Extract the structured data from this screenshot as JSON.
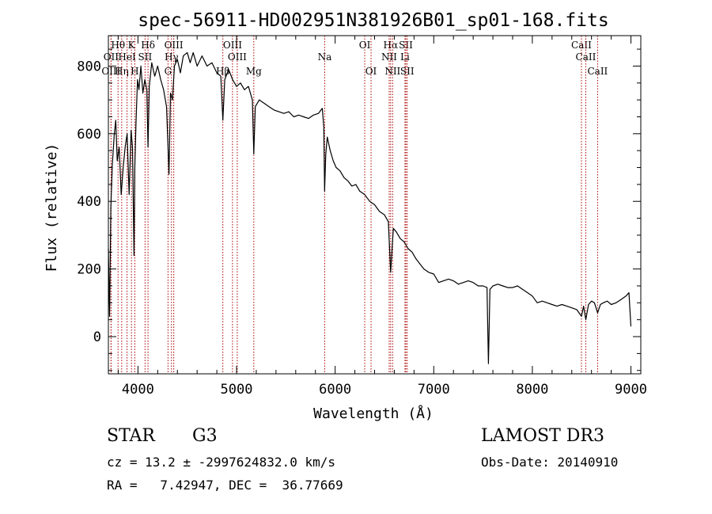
{
  "chart_data": {
    "type": "line",
    "title": "spec-56911-HD002951N381926B01_sp01-168.fits",
    "xlabel": "Wavelength (Å)",
    "ylabel": "Flux (relative)",
    "xlim": [
      3700,
      9100
    ],
    "ylim": [
      -110,
      890
    ],
    "x_ticks": [
      4000,
      5000,
      6000,
      7000,
      8000,
      9000
    ],
    "y_ticks": [
      0,
      200,
      400,
      600,
      800
    ],
    "grid": false,
    "series": [
      {
        "name": "flux",
        "points": [
          [
            3700,
            260
          ],
          [
            3712,
            60
          ],
          [
            3725,
            380
          ],
          [
            3740,
            510
          ],
          [
            3760,
            600
          ],
          [
            3775,
            640
          ],
          [
            3790,
            520
          ],
          [
            3810,
            560
          ],
          [
            3830,
            420
          ],
          [
            3850,
            500
          ],
          [
            3870,
            560
          ],
          [
            3890,
            600
          ],
          [
            3910,
            420
          ],
          [
            3930,
            610
          ],
          [
            3945,
            560
          ],
          [
            3960,
            240
          ],
          [
            3968,
            500
          ],
          [
            3980,
            630
          ],
          [
            3995,
            760
          ],
          [
            4010,
            730
          ],
          [
            4030,
            800
          ],
          [
            4050,
            720
          ],
          [
            4070,
            760
          ],
          [
            4090,
            730
          ],
          [
            4102,
            560
          ],
          [
            4115,
            740
          ],
          [
            4140,
            810
          ],
          [
            4170,
            770
          ],
          [
            4200,
            800
          ],
          [
            4230,
            760
          ],
          [
            4260,
            730
          ],
          [
            4290,
            680
          ],
          [
            4305,
            560
          ],
          [
            4315,
            480
          ],
          [
            4330,
            720
          ],
          [
            4350,
            700
          ],
          [
            4370,
            800
          ],
          [
            4400,
            820
          ],
          [
            4430,
            780
          ],
          [
            4460,
            830
          ],
          [
            4500,
            840
          ],
          [
            4530,
            810
          ],
          [
            4560,
            840
          ],
          [
            4600,
            800
          ],
          [
            4650,
            830
          ],
          [
            4700,
            800
          ],
          [
            4750,
            810
          ],
          [
            4800,
            780
          ],
          [
            4840,
            770
          ],
          [
            4861,
            640
          ],
          [
            4880,
            760
          ],
          [
            4920,
            790
          ],
          [
            4960,
            760
          ],
          [
            5000,
            740
          ],
          [
            5040,
            750
          ],
          [
            5080,
            730
          ],
          [
            5120,
            740
          ],
          [
            5160,
            700
          ],
          [
            5175,
            540
          ],
          [
            5190,
            680
          ],
          [
            5230,
            700
          ],
          [
            5280,
            690
          ],
          [
            5330,
            680
          ],
          [
            5380,
            670
          ],
          [
            5430,
            665
          ],
          [
            5480,
            660
          ],
          [
            5530,
            665
          ],
          [
            5580,
            650
          ],
          [
            5630,
            655
          ],
          [
            5680,
            650
          ],
          [
            5730,
            645
          ],
          [
            5780,
            655
          ],
          [
            5830,
            660
          ],
          [
            5870,
            675
          ],
          [
            5885,
            620
          ],
          [
            5893,
            430
          ],
          [
            5905,
            540
          ],
          [
            5920,
            590
          ],
          [
            5950,
            550
          ],
          [
            5980,
            520
          ],
          [
            6010,
            500
          ],
          [
            6050,
            490
          ],
          [
            6090,
            470
          ],
          [
            6130,
            460
          ],
          [
            6170,
            445
          ],
          [
            6210,
            450
          ],
          [
            6250,
            430
          ],
          [
            6300,
            420
          ],
          [
            6350,
            400
          ],
          [
            6400,
            390
          ],
          [
            6450,
            370
          ],
          [
            6500,
            360
          ],
          [
            6540,
            340
          ],
          [
            6563,
            190
          ],
          [
            6590,
            320
          ],
          [
            6620,
            310
          ],
          [
            6660,
            290
          ],
          [
            6700,
            280
          ],
          [
            6740,
            260
          ],
          [
            6780,
            250
          ],
          [
            6820,
            230
          ],
          [
            6860,
            215
          ],
          [
            6900,
            200
          ],
          [
            6950,
            190
          ],
          [
            7000,
            185
          ],
          [
            7050,
            160
          ],
          [
            7100,
            165
          ],
          [
            7150,
            170
          ],
          [
            7200,
            165
          ],
          [
            7250,
            155
          ],
          [
            7300,
            160
          ],
          [
            7350,
            165
          ],
          [
            7400,
            160
          ],
          [
            7450,
            150
          ],
          [
            7500,
            150
          ],
          [
            7540,
            145
          ],
          [
            7555,
            -80
          ],
          [
            7570,
            140
          ],
          [
            7600,
            150
          ],
          [
            7650,
            155
          ],
          [
            7700,
            150
          ],
          [
            7750,
            145
          ],
          [
            7800,
            145
          ],
          [
            7850,
            150
          ],
          [
            7900,
            140
          ],
          [
            7950,
            130
          ],
          [
            8000,
            120
          ],
          [
            8050,
            100
          ],
          [
            8100,
            105
          ],
          [
            8150,
            100
          ],
          [
            8200,
            95
          ],
          [
            8250,
            90
          ],
          [
            8300,
            95
          ],
          [
            8350,
            90
          ],
          [
            8400,
            85
          ],
          [
            8450,
            80
          ],
          [
            8498,
            60
          ],
          [
            8520,
            90
          ],
          [
            8542,
            50
          ],
          [
            8570,
            95
          ],
          [
            8600,
            105
          ],
          [
            8630,
            100
          ],
          [
            8662,
            70
          ],
          [
            8690,
            95
          ],
          [
            8720,
            100
          ],
          [
            8760,
            105
          ],
          [
            8800,
            95
          ],
          [
            8850,
            100
          ],
          [
            8900,
            110
          ],
          [
            8950,
            120
          ],
          [
            8980,
            130
          ],
          [
            9000,
            30
          ]
        ]
      }
    ],
    "line_markers": [
      {
        "label": "Hθ",
        "wavelength": 3798,
        "row": 1
      },
      {
        "label": "OII",
        "wavelength": 3727,
        "row": 2
      },
      {
        "label": "OIII",
        "wavelength": 3727,
        "row": 3
      },
      {
        "label": "Hη",
        "wavelength": 3835,
        "row": 3
      },
      {
        "label": "HeI",
        "wavelength": 3889,
        "row": 2
      },
      {
        "label": "K",
        "wavelength": 3934,
        "row": 1
      },
      {
        "label": "H",
        "wavelength": 3968,
        "row": 3
      },
      {
        "label": "SII",
        "wavelength": 4072,
        "row": 2
      },
      {
        "label": "Hδ",
        "wavelength": 4102,
        "row": 1
      },
      {
        "label": "OIII",
        "wavelength": 4363,
        "row": 1
      },
      {
        "label": "Hγ",
        "wavelength": 4340,
        "row": 2
      },
      {
        "label": "G",
        "wavelength": 4305,
        "row": 3
      },
      {
        "label": "Hβ",
        "wavelength": 4861,
        "row": 3
      },
      {
        "label": "OIII",
        "wavelength": 4959,
        "row": 1
      },
      {
        "label": "OIII",
        "wavelength": 5007,
        "row": 2
      },
      {
        "label": "Mg",
        "wavelength": 5175,
        "row": 3
      },
      {
        "label": "Na",
        "wavelength": 5894,
        "row": 2
      },
      {
        "label": "OI",
        "wavelength": 6300,
        "row": 1
      },
      {
        "label": "OI",
        "wavelength": 6364,
        "row": 3
      },
      {
        "label": "Hα",
        "wavelength": 6563,
        "row": 1
      },
      {
        "label": "NII",
        "wavelength": 6548,
        "row": 2
      },
      {
        "label": "NII",
        "wavelength": 6583,
        "row": 3
      },
      {
        "label": "SII",
        "wavelength": 6717,
        "row": 1
      },
      {
        "label": "Li",
        "wavelength": 6708,
        "row": 2
      },
      {
        "label": "SII",
        "wavelength": 6731,
        "row": 3
      },
      {
        "label": "CaII",
        "wavelength": 8498,
        "row": 1
      },
      {
        "label": "CaII",
        "wavelength": 8542,
        "row": 2
      },
      {
        "label": "CaII",
        "wavelength": 8662,
        "row": 3
      }
    ]
  },
  "info": {
    "object_class": "STAR",
    "subclass": "G3",
    "release": "LAMOST DR3",
    "redshift_line": "cz = 13.2 ± -2997624832.0 km/s",
    "obs_date_line": "Obs-Date: 20140910",
    "coords_line": "RA =   7.42947, DEC =  36.77669"
  },
  "colors": {
    "spectrum": "#000000",
    "marker": "#aa0000",
    "axes": "#000000",
    "background": "#ffffff"
  }
}
